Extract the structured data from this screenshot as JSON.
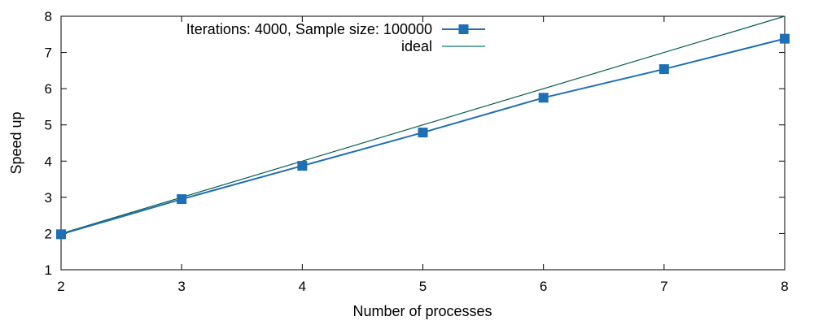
{
  "chart_data": {
    "type": "line",
    "xlabel": "Number of processes",
    "ylabel": "Speed up",
    "xlim": [
      2,
      8
    ],
    "ylim": [
      1,
      8
    ],
    "xticks": [
      "2",
      "3",
      "4",
      "5",
      "6",
      "7",
      "8"
    ],
    "yticks": [
      "1",
      "2",
      "3",
      "4",
      "5",
      "6",
      "7",
      "8"
    ],
    "grid": false,
    "legend_position": "top-left",
    "series": [
      {
        "name": "Iterations: 4000, Sample size: 100000",
        "x": [
          2,
          3,
          4,
          5,
          6,
          7,
          8
        ],
        "y": [
          1.98,
          2.95,
          3.87,
          4.79,
          5.75,
          6.54,
          7.38
        ],
        "color": "#1f6fb4",
        "marker": "square"
      },
      {
        "name": "ideal",
        "x": [
          2,
          8
        ],
        "y": [
          2,
          8
        ],
        "color": "#0e7a6e",
        "marker": "none"
      }
    ]
  }
}
